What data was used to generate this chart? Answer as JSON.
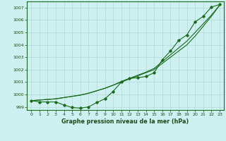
{
  "xlabel": "Graphe pression niveau de la mer (hPa)",
  "bg_color": "#cff0f0",
  "grid_color": "#b0d8d8",
  "line_color": "#1a6b1a",
  "xlim": [
    -0.5,
    23.5
  ],
  "ylim": [
    998.75,
    1007.5
  ],
  "yticks": [
    999,
    1000,
    1001,
    1002,
    1003,
    1004,
    1005,
    1006,
    1007
  ],
  "xticks": [
    0,
    1,
    2,
    3,
    4,
    5,
    6,
    7,
    8,
    9,
    10,
    11,
    12,
    13,
    14,
    15,
    16,
    17,
    18,
    19,
    20,
    21,
    22,
    23
  ],
  "line_straight1": [
    999.5,
    999.55,
    999.6,
    999.65,
    999.75,
    999.85,
    999.95,
    1000.1,
    1000.3,
    1000.5,
    1000.75,
    1001.0,
    1001.25,
    1001.5,
    1001.75,
    1002.0,
    1002.5,
    1003.0,
    1003.5,
    1004.0,
    1004.7,
    1005.5,
    1006.3,
    1007.2
  ],
  "line_straight2": [
    999.5,
    999.55,
    999.6,
    999.65,
    999.75,
    999.85,
    999.95,
    1000.1,
    1000.3,
    1000.5,
    1000.75,
    1001.05,
    1001.3,
    1001.55,
    1001.8,
    1002.1,
    1002.65,
    1003.2,
    1003.75,
    1004.3,
    1005.0,
    1005.7,
    1006.4,
    1007.2
  ],
  "line_dip": [
    999.5,
    999.4,
    999.4,
    999.4,
    999.15,
    998.95,
    998.9,
    999.0,
    999.35,
    999.65,
    1000.25,
    1001.0,
    1001.3,
    1001.35,
    1001.45,
    1001.75,
    1002.8,
    1003.5,
    1004.35,
    1004.8,
    1005.85,
    1006.3,
    1007.05,
    1007.25
  ],
  "xlabel_fontsize": 5.8,
  "tick_fontsize": 4.5
}
